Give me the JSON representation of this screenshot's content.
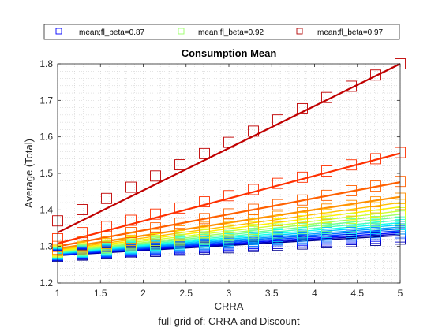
{
  "chart_data": {
    "type": "line",
    "title": "Consumption Mean",
    "xlabel": "CRRA",
    "ylabel": "Average (Total)",
    "subtitle": "full grid of: CRRA and Discount",
    "xlim": [
      1,
      5
    ],
    "ylim": [
      1.2,
      1.8
    ],
    "xticks": [
      "1",
      "1.5",
      "2",
      "2.5",
      "3",
      "3.5",
      "4",
      "4.5",
      "5"
    ],
    "yticks": [
      "1.2",
      "1.3",
      "1.4",
      "1.5",
      "1.6",
      "1.7",
      "1.8"
    ],
    "grid": true,
    "legend_position": "top",
    "legend": [
      {
        "label": "mean;fl_beta=0.87",
        "color": "#0000ff"
      },
      {
        "label": "mean;fl_beta=0.92",
        "color": "#99ff66"
      },
      {
        "label": "mean;fl_beta=0.97",
        "color": "#b30000"
      }
    ],
    "x": [
      1,
      1.2857,
      1.5714,
      1.8571,
      2.1429,
      2.4286,
      2.7143,
      3,
      3.2857,
      3.5714,
      3.8571,
      4.1429,
      4.4286,
      4.7143,
      5
    ],
    "series": [
      {
        "color": "#00008f",
        "start": 1.275,
        "end": 1.33,
        "marker_start": 1.273,
        "marker_end": 1.32
      },
      {
        "color": "#0000c8",
        "start": 1.276,
        "end": 1.334,
        "marker_start": 1.275,
        "marker_end": 1.326
      },
      {
        "color": "#0010ff",
        "start": 1.277,
        "end": 1.338,
        "marker_start": 1.276,
        "marker_end": 1.332
      },
      {
        "color": "#0040ff",
        "start": 1.278,
        "end": 1.343,
        "marker_start": 1.277,
        "marker_end": 1.337
      },
      {
        "color": "#0070ff",
        "start": 1.279,
        "end": 1.348,
        "marker_start": 1.278,
        "marker_end": 1.342
      },
      {
        "color": "#00a0ff",
        "start": 1.28,
        "end": 1.353,
        "marker_start": 1.279,
        "marker_end": 1.348
      },
      {
        "color": "#00d0ff",
        "start": 1.281,
        "end": 1.359,
        "marker_start": 1.28,
        "marker_end": 1.354
      },
      {
        "color": "#10ffef",
        "start": 1.282,
        "end": 1.365,
        "marker_start": 1.281,
        "marker_end": 1.36
      },
      {
        "color": "#40ffbf",
        "start": 1.283,
        "end": 1.372,
        "marker_start": 1.282,
        "marker_end": 1.367
      },
      {
        "color": "#70ff8f",
        "start": 1.284,
        "end": 1.38,
        "marker_start": 1.283,
        "marker_end": 1.375
      },
      {
        "color": "#a0ff60",
        "start": 1.285,
        "end": 1.388,
        "marker_start": 1.284,
        "marker_end": 1.383
      },
      {
        "color": "#d0ff30",
        "start": 1.287,
        "end": 1.397,
        "marker_start": 1.286,
        "marker_end": 1.392
      },
      {
        "color": "#ffef00",
        "start": 1.289,
        "end": 1.408,
        "marker_start": 1.288,
        "marker_end": 1.403
      },
      {
        "color": "#ffbf00",
        "start": 1.291,
        "end": 1.42,
        "marker_start": 1.29,
        "marker_end": 1.415
      },
      {
        "color": "#ff9000",
        "start": 1.294,
        "end": 1.436,
        "marker_start": 1.293,
        "marker_end": 1.432
      },
      {
        "color": "#ff6000",
        "start": 1.3,
        "end": 1.476,
        "marker_start": 1.3,
        "marker_end": 1.478
      },
      {
        "color": "#ff3000",
        "start": 1.308,
        "end": 1.555,
        "marker_start": 1.321,
        "marker_end": 1.557
      },
      {
        "color": "#c00000",
        "start": 1.338,
        "end": 1.8,
        "marker_start": 1.37,
        "marker_end": 1.8
      }
    ]
  }
}
